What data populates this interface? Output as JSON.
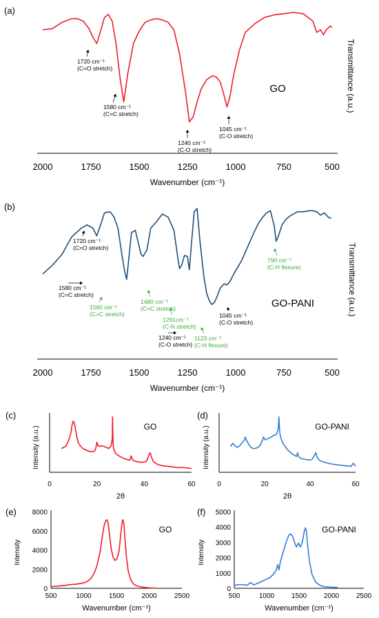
{
  "colors": {
    "red": "#ee1c25",
    "blue": "#1f4e79",
    "blue_light": "#2f7fd2",
    "green": "#3aaa35",
    "axis": "#000000"
  },
  "chart_data": [
    {
      "id": "a",
      "panel_label": "(a)",
      "type": "line",
      "series_label": "GO",
      "xlabel": "Wavenumber (cm⁻¹)",
      "ylabel": "Transmittance (a.u.)",
      "xlim": [
        2000,
        500
      ],
      "xticks": [
        2000,
        1750,
        1500,
        1250,
        1000,
        750,
        500
      ],
      "color": "#ee1c25",
      "series": [
        {
          "x": [
            2000,
            1950,
            1900,
            1850,
            1820,
            1790,
            1760,
            1740,
            1720,
            1700,
            1680,
            1660,
            1640,
            1620,
            1600,
            1580,
            1560,
            1530,
            1500,
            1470,
            1440,
            1410,
            1380,
            1350,
            1320,
            1290,
            1260,
            1240,
            1220,
            1200,
            1180,
            1150,
            1120,
            1100,
            1080,
            1065,
            1045,
            1030,
            1010,
            980,
            950,
            900,
            850,
            800,
            750,
            700,
            650,
            600,
            580,
            560,
            545,
            530,
            510,
            500
          ],
          "y": [
            0.86,
            0.87,
            0.92,
            0.95,
            0.95,
            0.93,
            0.87,
            0.8,
            0.75,
            0.85,
            0.96,
            0.985,
            0.93,
            0.75,
            0.48,
            0.28,
            0.5,
            0.75,
            0.85,
            0.92,
            0.94,
            0.95,
            0.94,
            0.92,
            0.86,
            0.66,
            0.36,
            0.12,
            0.16,
            0.28,
            0.38,
            0.46,
            0.49,
            0.48,
            0.44,
            0.36,
            0.24,
            0.32,
            0.5,
            0.7,
            0.84,
            0.91,
            0.96,
            0.98,
            0.99,
            1.0,
            0.99,
            0.93,
            0.84,
            0.86,
            0.82,
            0.86,
            0.89,
            0.88
          ]
        }
      ],
      "annotations": [
        {
          "line1": "1720 cm⁻¹",
          "line2": "(C=O stretch)",
          "x": 1720,
          "color": "black"
        },
        {
          "line1": "1580 cm⁻¹",
          "line2": "(C=C stretch)",
          "x": 1580,
          "color": "black"
        },
        {
          "line1": "1240 cm⁻¹",
          "line2": "(C-O stretch)",
          "x": 1240,
          "color": "black"
        },
        {
          "line1": "1045 cm⁻¹",
          "line2": "(C-O stretch)",
          "x": 1045,
          "color": "black"
        }
      ]
    },
    {
      "id": "b",
      "panel_label": "(b)",
      "type": "line",
      "series_label": "GO-PANI",
      "xlabel": "Wavenumber (cm⁻¹)",
      "ylabel": "Transmittance (a.u.)",
      "xlim": [
        2000,
        500
      ],
      "xticks": [
        2000,
        1750,
        1500,
        1250,
        1000,
        750,
        500
      ],
      "color": "#1f4e79",
      "series": [
        {
          "x": [
            2000,
            1950,
            1900,
            1850,
            1800,
            1770,
            1740,
            1720,
            1700,
            1680,
            1650,
            1630,
            1610,
            1590,
            1575,
            1565,
            1555,
            1540,
            1520,
            1500,
            1490,
            1480,
            1460,
            1440,
            1410,
            1380,
            1350,
            1320,
            1300,
            1291,
            1280,
            1265,
            1250,
            1240,
            1230,
            1215,
            1200,
            1185,
            1165,
            1150,
            1135,
            1123,
            1110,
            1095,
            1080,
            1060,
            1045,
            1030,
            1010,
            990,
            970,
            950,
            925,
            900,
            880,
            860,
            840,
            820,
            800,
            790,
            780,
            760,
            740,
            720,
            700,
            680,
            650,
            620,
            600,
            580,
            560,
            540,
            520,
            505
          ],
          "y": [
            0.4,
            0.48,
            0.58,
            0.74,
            0.82,
            0.85,
            0.82,
            0.75,
            0.85,
            0.96,
            0.97,
            0.92,
            0.82,
            0.58,
            0.42,
            0.35,
            0.52,
            0.78,
            0.8,
            0.65,
            0.58,
            0.56,
            0.62,
            0.82,
            0.88,
            0.95,
            0.92,
            0.8,
            0.55,
            0.45,
            0.48,
            0.57,
            0.56,
            0.44,
            0.66,
            0.97,
            1.0,
            0.7,
            0.38,
            0.22,
            0.15,
            0.12,
            0.14,
            0.2,
            0.27,
            0.31,
            0.3,
            0.33,
            0.4,
            0.46,
            0.52,
            0.6,
            0.7,
            0.8,
            0.87,
            0.92,
            0.96,
            0.98,
            0.84,
            0.7,
            0.74,
            0.85,
            0.9,
            0.93,
            0.95,
            0.97,
            0.97,
            0.98,
            0.98,
            0.97,
            0.94,
            0.96,
            0.92,
            0.91
          ]
        }
      ],
      "annotations": [
        {
          "line1": "1720 cm⁻¹",
          "line2": "(C=O stretch)",
          "x": 1720,
          "color": "black"
        },
        {
          "line1": "1580 cm⁻¹",
          "line2": "(C=C stretch)",
          "x": 1580,
          "color": "black"
        },
        {
          "line1": "1560 cm⁻¹",
          "line2": "(C=C stretch)",
          "x": 1560,
          "color": "green"
        },
        {
          "line1": "1480 cm⁻¹",
          "line2": "(C=C stretch)",
          "x": 1480,
          "color": "green"
        },
        {
          "line1": "1291cm⁻¹",
          "line2": "(C-N stretch)",
          "x": 1291,
          "color": "green"
        },
        {
          "line1": "1240 cm⁻¹",
          "line2": "(C-O stretch)",
          "x": 1240,
          "color": "black"
        },
        {
          "line1": "1123 cm⁻¹",
          "line2": "(C-H flexure)",
          "x": 1123,
          "color": "green"
        },
        {
          "line1": "1045 cm⁻¹",
          "line2": "(C-O stretch)",
          "x": 1045,
          "color": "black"
        },
        {
          "line1": "790 cm⁻¹",
          "line2": "(C-H flexure)",
          "x": 790,
          "color": "green"
        }
      ]
    },
    {
      "id": "c",
      "panel_label": "(c)",
      "type": "line",
      "series_label": "GO",
      "xlabel": "2θ",
      "ylabel": "Intensity (a.u.)",
      "xlim": [
        0,
        60
      ],
      "xticks": [
        0,
        20,
        40,
        60
      ],
      "color": "#ee1c25",
      "series": [
        {
          "x": [
            5,
            6,
            7,
            8,
            9,
            9.5,
            10,
            10.5,
            11,
            11.5,
            12,
            13,
            14,
            15,
            16,
            17,
            18,
            19,
            19.5,
            20,
            20.5,
            21,
            22,
            23,
            24,
            25,
            26,
            26.5,
            26.6,
            26.8,
            27,
            28,
            30,
            32,
            34,
            34.5,
            35,
            36,
            38,
            40,
            41,
            42,
            42.5,
            43,
            44,
            46,
            48,
            50,
            52,
            54,
            56,
            58,
            60
          ],
          "y": [
            0.4,
            0.42,
            0.45,
            0.55,
            0.7,
            0.85,
            0.92,
            0.88,
            0.75,
            0.62,
            0.52,
            0.45,
            0.4,
            0.38,
            0.36,
            0.34,
            0.34,
            0.35,
            0.4,
            0.52,
            0.45,
            0.44,
            0.45,
            0.44,
            0.42,
            0.4,
            0.45,
            0.6,
            1.0,
            0.55,
            0.4,
            0.3,
            0.24,
            0.2,
            0.18,
            0.26,
            0.19,
            0.16,
            0.14,
            0.14,
            0.16,
            0.28,
            0.32,
            0.24,
            0.14,
            0.09,
            0.07,
            0.06,
            0.05,
            0.04,
            0.04,
            0.03,
            0.02
          ]
        }
      ]
    },
    {
      "id": "d",
      "panel_label": "(d)",
      "type": "line",
      "series_label": "GO-PANI",
      "xlabel": "2θ",
      "ylabel": "Intensity (a.u.)",
      "xlim": [
        0,
        60
      ],
      "xticks": [
        0,
        20,
        40,
        60
      ],
      "color": "#2f7fd2",
      "series": [
        {
          "x": [
            5,
            6,
            7,
            8,
            9,
            10,
            11,
            11.5,
            12,
            13,
            14,
            15,
            16,
            17,
            18,
            19,
            19.5,
            20,
            20.5,
            21,
            22,
            23,
            24,
            25,
            25.5,
            26,
            26.3,
            26.6,
            27,
            28,
            30,
            32,
            34,
            34.5,
            35,
            36,
            38,
            40,
            41,
            42,
            42.5,
            43,
            44,
            46,
            48,
            50,
            52,
            54,
            56,
            58,
            59,
            60
          ],
          "y": [
            0.44,
            0.5,
            0.45,
            0.42,
            0.45,
            0.5,
            0.55,
            0.62,
            0.56,
            0.48,
            0.42,
            0.4,
            0.4,
            0.42,
            0.46,
            0.55,
            0.62,
            0.58,
            0.56,
            0.58,
            0.6,
            0.62,
            0.65,
            0.66,
            0.7,
            0.78,
            1.0,
            0.72,
            0.62,
            0.5,
            0.38,
            0.3,
            0.25,
            0.32,
            0.24,
            0.21,
            0.19,
            0.18,
            0.2,
            0.28,
            0.32,
            0.24,
            0.18,
            0.14,
            0.12,
            0.1,
            0.09,
            0.08,
            0.07,
            0.06,
            0.12,
            0.06
          ]
        }
      ]
    },
    {
      "id": "e",
      "panel_label": "(e)",
      "type": "line",
      "series_label": "GO",
      "xlabel": "Wavenumber  (cm⁻¹)",
      "ylabel": "Intensity",
      "xlim": [
        500,
        2500
      ],
      "ylim": [
        0,
        8000
      ],
      "xticks": [
        500,
        1000,
        1500,
        2000,
        2500
      ],
      "yticks": [
        0,
        2000,
        4000,
        6000,
        8000
      ],
      "color": "#ee1c25",
      "series": [
        {
          "x": [
            500,
            600,
            700,
            800,
            900,
            1000,
            1050,
            1100,
            1150,
            1200,
            1250,
            1280,
            1310,
            1340,
            1355,
            1370,
            1390,
            1420,
            1450,
            1480,
            1510,
            1540,
            1570,
            1590,
            1600,
            1615,
            1630,
            1650,
            1680,
            1720,
            1760,
            1800,
            1850,
            1900,
            1950,
            2000,
            2050,
            2100
          ],
          "y": [
            180,
            220,
            300,
            380,
            450,
            560,
            700,
            960,
            1450,
            2300,
            3800,
            5200,
            6500,
            7100,
            7150,
            6900,
            5800,
            4100,
            3200,
            2900,
            3100,
            3900,
            6000,
            7100,
            7150,
            6700,
            5200,
            3400,
            1800,
            850,
            450,
            280,
            180,
            120,
            80,
            50,
            30,
            20
          ]
        }
      ]
    },
    {
      "id": "f",
      "panel_label": "(f)",
      "type": "line",
      "series_label": "GO-PANI",
      "xlabel": "Wavenumber  (cm⁻¹)",
      "ylabel": "Intensity",
      "xlim": [
        500,
        2500
      ],
      "ylim": [
        0,
        5000
      ],
      "xticks": [
        500,
        1000,
        1500,
        2000,
        2500
      ],
      "yticks": [
        0,
        1000,
        2000,
        3000,
        4000,
        5000
      ],
      "color": "#2f7fd2",
      "series": [
        {
          "x": [
            500,
            600,
            700,
            750,
            800,
            900,
            1000,
            1050,
            1100,
            1150,
            1170,
            1190,
            1210,
            1250,
            1300,
            1340,
            1370,
            1400,
            1430,
            1460,
            1490,
            1520,
            1550,
            1580,
            1600,
            1615,
            1630,
            1660,
            1700,
            1750,
            1800,
            1850,
            1900,
            2000,
            2100
          ],
          "y": [
            200,
            250,
            200,
            380,
            220,
            400,
            600,
            700,
            900,
            1200,
            1550,
            1200,
            1700,
            2300,
            3000,
            3450,
            3550,
            3400,
            3000,
            2700,
            2950,
            2700,
            3000,
            3700,
            3950,
            3700,
            2900,
            1800,
            900,
            450,
            250,
            150,
            100,
            70,
            50
          ]
        }
      ]
    }
  ]
}
